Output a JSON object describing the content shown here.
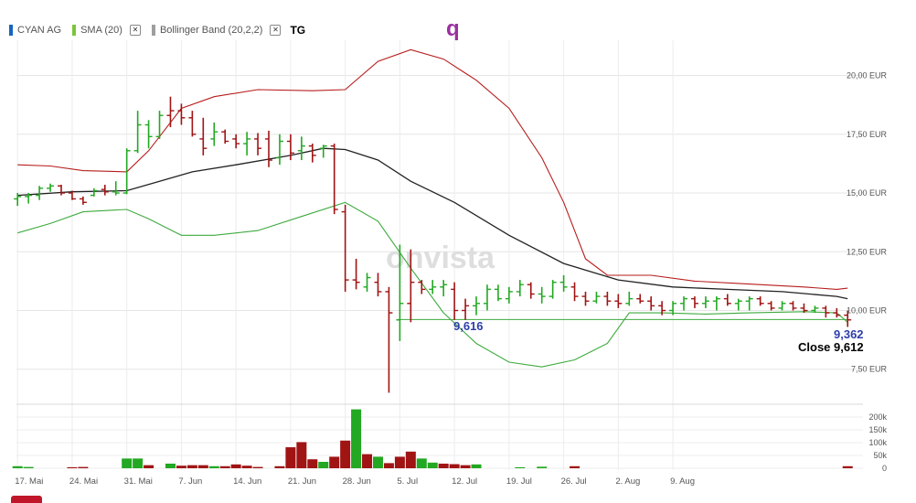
{
  "legend": {
    "instrument": {
      "label": "CYAN AG",
      "color": "#1565c0"
    },
    "sma": {
      "label": "SMA (20)",
      "color": "#7cc53b",
      "close_icon": "close-icon"
    },
    "bollinger": {
      "label": "Bollinger Band (20,2,2)",
      "color": "#9e9e9e",
      "close_icon": "close-icon"
    },
    "period": "TG"
  },
  "brand": "q",
  "watermark": "onvista",
  "annotations": {
    "low_value": "9,616",
    "last_value": "9,362",
    "close_label": "Close 9,612"
  },
  "colors": {
    "up": "#22a822",
    "down": "#a01414",
    "upper_band": "#b71c1c",
    "lower_band": "#3daa3d",
    "sma": "#222222",
    "level_line": "#3daa3d"
  },
  "chart_data": {
    "type": "ohlc",
    "title": "",
    "currency": "EUR",
    "ylim": [
      6.4,
      21.5
    ],
    "yticks": [
      20.0,
      17.5,
      15.0,
      12.5,
      10.0,
      7.5
    ],
    "ytick_labels": [
      "20,00 EUR",
      "17,50 EUR",
      "15,00 EUR",
      "12,50 EUR",
      "10,00 EUR",
      "7,50 EUR"
    ],
    "x_labels": [
      "17. Mai",
      "24. Mai",
      "31. Mai",
      "7. Jun",
      "14. Jun",
      "21. Jun",
      "28. Jun",
      "5. Jul",
      "12. Jul",
      "19. Jul",
      "26. Jul",
      "2. Aug",
      "9. Aug"
    ],
    "x_label_positions": [
      0,
      5,
      10,
      15,
      20,
      25,
      30,
      35,
      40,
      45,
      50,
      55,
      60
    ],
    "ohlc": [
      {
        "o": 14.75,
        "h": 15.0,
        "l": 14.45,
        "c": 14.85,
        "up": true
      },
      {
        "o": 14.85,
        "h": 15.0,
        "l": 14.55,
        "c": 14.9,
        "up": true
      },
      {
        "o": 14.9,
        "h": 15.3,
        "l": 14.7,
        "c": 15.2,
        "up": true
      },
      {
        "o": 15.2,
        "h": 15.4,
        "l": 15.05,
        "c": 15.3,
        "up": true
      },
      {
        "o": 15.3,
        "h": 15.35,
        "l": 14.9,
        "c": 15.0,
        "up": false
      },
      {
        "o": 15.0,
        "h": 15.1,
        "l": 14.7,
        "c": 14.75,
        "up": false
      },
      {
        "o": 14.75,
        "h": 14.85,
        "l": 14.5,
        "c": 14.6,
        "up": false
      },
      {
        "o": 14.9,
        "h": 15.2,
        "l": 14.85,
        "c": 15.1,
        "up": true
      },
      {
        "o": 15.15,
        "h": 15.35,
        "l": 14.9,
        "c": 15.05,
        "up": false
      },
      {
        "o": 15.05,
        "h": 15.5,
        "l": 14.9,
        "c": 15.0,
        "up": true
      },
      {
        "o": 15.0,
        "h": 16.9,
        "l": 14.95,
        "c": 16.8,
        "up": true
      },
      {
        "o": 16.8,
        "h": 18.5,
        "l": 16.7,
        "c": 17.9,
        "up": true
      },
      {
        "o": 17.9,
        "h": 18.1,
        "l": 16.9,
        "c": 17.4,
        "up": true
      },
      {
        "o": 17.4,
        "h": 18.5,
        "l": 17.3,
        "c": 18.3,
        "up": true
      },
      {
        "o": 18.3,
        "h": 19.1,
        "l": 17.8,
        "c": 18.5,
        "up": false
      },
      {
        "o": 18.5,
        "h": 18.8,
        "l": 17.9,
        "c": 18.2,
        "up": false
      },
      {
        "o": 18.2,
        "h": 18.5,
        "l": 17.4,
        "c": 17.5,
        "up": false
      },
      {
        "o": 17.3,
        "h": 18.2,
        "l": 16.6,
        "c": 16.9,
        "up": false
      },
      {
        "o": 17.3,
        "h": 18.0,
        "l": 17.0,
        "c": 17.6,
        "up": true
      },
      {
        "o": 17.6,
        "h": 17.7,
        "l": 17.1,
        "c": 17.2,
        "up": false
      },
      {
        "o": 17.3,
        "h": 17.5,
        "l": 16.9,
        "c": 17.1,
        "up": false
      },
      {
        "o": 17.1,
        "h": 17.6,
        "l": 16.6,
        "c": 17.3,
        "up": true
      },
      {
        "o": 17.3,
        "h": 17.55,
        "l": 16.6,
        "c": 16.9,
        "up": false
      },
      {
        "o": 17.3,
        "h": 17.65,
        "l": 16.1,
        "c": 16.4,
        "up": false
      },
      {
        "o": 16.5,
        "h": 17.5,
        "l": 16.2,
        "c": 17.2,
        "up": true
      },
      {
        "o": 17.2,
        "h": 17.5,
        "l": 16.4,
        "c": 16.7,
        "up": false
      },
      {
        "o": 16.8,
        "h": 17.4,
        "l": 16.4,
        "c": 17.0,
        "up": true
      },
      {
        "o": 17.0,
        "h": 17.1,
        "l": 16.3,
        "c": 16.6,
        "up": false
      },
      {
        "o": 16.9,
        "h": 17.05,
        "l": 16.5,
        "c": 17.0,
        "up": true
      },
      {
        "o": 17.0,
        "h": 17.1,
        "l": 14.1,
        "c": 14.3,
        "up": false
      },
      {
        "o": 14.2,
        "h": 14.5,
        "l": 10.8,
        "c": 11.3,
        "up": false
      },
      {
        "o": 11.3,
        "h": 12.2,
        "l": 10.9,
        "c": 11.2,
        "up": false
      },
      {
        "o": 11.0,
        "h": 11.6,
        "l": 10.8,
        "c": 11.4,
        "up": true
      },
      {
        "o": 11.2,
        "h": 11.6,
        "l": 10.6,
        "c": 10.8,
        "up": false
      },
      {
        "o": 10.8,
        "h": 11.0,
        "l": 6.5,
        "c": 9.9,
        "up": false
      },
      {
        "o": 9.6,
        "h": 12.8,
        "l": 8.7,
        "c": 10.3,
        "up": true
      },
      {
        "o": 10.3,
        "h": 12.6,
        "l": 9.5,
        "c": 11.2,
        "up": false
      },
      {
        "o": 11.2,
        "h": 11.3,
        "l": 10.7,
        "c": 10.9,
        "up": false
      },
      {
        "o": 10.9,
        "h": 11.3,
        "l": 10.7,
        "c": 11.0,
        "up": true
      },
      {
        "o": 11.0,
        "h": 11.3,
        "l": 10.6,
        "c": 11.1,
        "up": true
      },
      {
        "o": 10.9,
        "h": 11.2,
        "l": 9.6,
        "c": 10.0,
        "up": false
      }
    ],
    "ohlc_x": [
      0,
      1,
      2,
      3,
      4,
      5,
      6,
      7,
      8,
      9,
      10,
      11,
      12,
      13,
      14,
      15,
      16,
      17,
      18,
      19,
      20,
      21,
      22,
      23,
      24,
      25,
      26,
      27,
      28,
      29,
      30,
      31,
      32,
      33,
      34,
      35,
      36,
      37,
      38,
      39,
      40
    ],
    "ohlc2": [
      {
        "o": 10.0,
        "h": 10.5,
        "l": 9.6,
        "c": 10.2,
        "up": false
      },
      {
        "o": 10.2,
        "h": 10.6,
        "l": 9.8,
        "c": 10.3,
        "up": true
      },
      {
        "o": 10.3,
        "h": 11.1,
        "l": 10.0,
        "c": 10.9,
        "up": true
      },
      {
        "o": 10.9,
        "h": 11.1,
        "l": 10.4,
        "c": 10.5,
        "up": true
      },
      {
        "o": 10.5,
        "h": 11.0,
        "l": 10.3,
        "c": 10.8,
        "up": true
      },
      {
        "o": 10.8,
        "h": 11.3,
        "l": 10.6,
        "c": 11.1,
        "up": true
      },
      {
        "o": 11.1,
        "h": 11.2,
        "l": 10.5,
        "c": 10.7,
        "up": false
      },
      {
        "o": 10.7,
        "h": 11.0,
        "l": 10.3,
        "c": 10.6,
        "up": true
      },
      {
        "o": 10.6,
        "h": 11.3,
        "l": 10.5,
        "c": 11.2,
        "up": true
      },
      {
        "o": 11.2,
        "h": 11.5,
        "l": 10.8,
        "c": 11.0,
        "up": true
      },
      {
        "o": 11.0,
        "h": 11.2,
        "l": 10.4,
        "c": 10.6,
        "up": false
      },
      {
        "o": 10.6,
        "h": 10.8,
        "l": 10.2,
        "c": 10.4,
        "up": false
      },
      {
        "o": 10.4,
        "h": 10.8,
        "l": 10.3,
        "c": 10.6,
        "up": true
      },
      {
        "o": 10.6,
        "h": 10.8,
        "l": 10.2,
        "c": 10.4,
        "up": false
      },
      {
        "o": 10.4,
        "h": 10.7,
        "l": 10.1,
        "c": 10.3,
        "up": false
      },
      {
        "o": 10.3,
        "h": 10.8,
        "l": 10.2,
        "c": 10.5,
        "up": true
      },
      {
        "o": 10.5,
        "h": 10.7,
        "l": 10.3,
        "c": 10.4,
        "up": false
      },
      {
        "o": 10.4,
        "h": 10.6,
        "l": 10.0,
        "c": 10.2,
        "up": false
      },
      {
        "o": 10.2,
        "h": 10.4,
        "l": 9.8,
        "c": 10.0,
        "up": false
      },
      {
        "o": 10.0,
        "h": 10.4,
        "l": 9.8,
        "c": 10.3,
        "up": true
      },
      {
        "o": 10.3,
        "h": 10.6,
        "l": 10.0,
        "c": 10.5,
        "up": true
      },
      {
        "o": 10.5,
        "h": 10.6,
        "l": 10.1,
        "c": 10.3,
        "up": false
      },
      {
        "o": 10.3,
        "h": 10.6,
        "l": 10.1,
        "c": 10.4,
        "up": true
      },
      {
        "o": 10.4,
        "h": 10.6,
        "l": 10.0,
        "c": 10.5,
        "up": true
      },
      {
        "o": 10.5,
        "h": 10.7,
        "l": 10.2,
        "c": 10.3,
        "up": false
      },
      {
        "o": 10.3,
        "h": 10.5,
        "l": 10.0,
        "c": 10.4,
        "up": true
      },
      {
        "o": 10.4,
        "h": 10.6,
        "l": 10.0,
        "c": 10.5,
        "up": true
      },
      {
        "o": 10.5,
        "h": 10.6,
        "l": 10.2,
        "c": 10.3,
        "up": false
      },
      {
        "o": 10.3,
        "h": 10.4,
        "l": 10.0,
        "c": 10.1,
        "up": false
      },
      {
        "o": 10.1,
        "h": 10.4,
        "l": 10.0,
        "c": 10.3,
        "up": true
      },
      {
        "o": 10.3,
        "h": 10.4,
        "l": 10.0,
        "c": 10.1,
        "up": false
      },
      {
        "o": 10.1,
        "h": 10.3,
        "l": 9.9,
        "c": 10.0,
        "up": false
      },
      {
        "o": 10.0,
        "h": 10.2,
        "l": 9.9,
        "c": 10.1,
        "up": true
      },
      {
        "o": 10.1,
        "h": 10.2,
        "l": 9.7,
        "c": 9.9,
        "up": false
      },
      {
        "o": 9.9,
        "h": 10.1,
        "l": 9.7,
        "c": 9.8,
        "up": false
      },
      {
        "o": 9.8,
        "h": 10.0,
        "l": 9.3,
        "c": 9.6,
        "up": false
      }
    ],
    "ohlc2_x": [
      41,
      42,
      43,
      44,
      45,
      46,
      47,
      48,
      49,
      50,
      51,
      52,
      53,
      54,
      55,
      56,
      57,
      58,
      59,
      60,
      61,
      62,
      63,
      64,
      65,
      66,
      67,
      68,
      69,
      70,
      71,
      72,
      73,
      74,
      75,
      76
    ],
    "sma20": [
      [
        0,
        14.9
      ],
      [
        5,
        15.05
      ],
      [
        10,
        15.1
      ],
      [
        13,
        15.5
      ],
      [
        16,
        15.9
      ],
      [
        20,
        16.2
      ],
      [
        25,
        16.6
      ],
      [
        28,
        16.9
      ],
      [
        30,
        16.85
      ],
      [
        33,
        16.4
      ],
      [
        36,
        15.5
      ],
      [
        40,
        14.6
      ],
      [
        45,
        13.2
      ],
      [
        50,
        12.0
      ],
      [
        55,
        11.3
      ],
      [
        60,
        11.0
      ],
      [
        65,
        10.9
      ],
      [
        70,
        10.8
      ],
      [
        75,
        10.6
      ],
      [
        76,
        10.5
      ]
    ],
    "upper_band": [
      [
        0,
        16.2
      ],
      [
        3,
        16.15
      ],
      [
        6,
        15.95
      ],
      [
        10,
        15.9
      ],
      [
        12,
        16.8
      ],
      [
        15,
        18.6
      ],
      [
        18,
        19.1
      ],
      [
        22,
        19.4
      ],
      [
        27,
        19.35
      ],
      [
        30,
        19.4
      ],
      [
        33,
        20.6
      ],
      [
        36,
        21.1
      ],
      [
        39,
        20.7
      ],
      [
        42,
        19.8
      ],
      [
        45,
        18.6
      ],
      [
        48,
        16.5
      ],
      [
        50,
        14.6
      ],
      [
        52,
        12.2
      ],
      [
        54,
        11.5
      ],
      [
        58,
        11.5
      ],
      [
        62,
        11.25
      ],
      [
        66,
        11.15
      ],
      [
        72,
        11.0
      ],
      [
        75,
        10.9
      ],
      [
        76,
        10.95
      ]
    ],
    "lower_band": [
      [
        0,
        13.3
      ],
      [
        3,
        13.7
      ],
      [
        6,
        14.2
      ],
      [
        10,
        14.3
      ],
      [
        12,
        13.9
      ],
      [
        15,
        13.2
      ],
      [
        18,
        13.2
      ],
      [
        22,
        13.4
      ],
      [
        26,
        14.0
      ],
      [
        30,
        14.6
      ],
      [
        33,
        13.8
      ],
      [
        36,
        11.8
      ],
      [
        39,
        9.9
      ],
      [
        42,
        8.6
      ],
      [
        45,
        7.8
      ],
      [
        48,
        7.6
      ],
      [
        51,
        7.9
      ],
      [
        54,
        8.6
      ],
      [
        56,
        9.9
      ],
      [
        59,
        9.9
      ],
      [
        63,
        9.85
      ],
      [
        67,
        9.9
      ],
      [
        72,
        9.95
      ],
      [
        75,
        9.9
      ],
      [
        76,
        9.5
      ]
    ],
    "level_line": {
      "value": 9.616,
      "x_from": 34,
      "x_to": 76
    },
    "volume": {
      "yticks": [
        200000,
        150000,
        100000,
        50000,
        0
      ],
      "ytick_labels": [
        "200k",
        "150k",
        "100k",
        "50k",
        "0"
      ],
      "ylim": [
        0,
        250000
      ],
      "bars": [
        {
          "x": 0,
          "v": 8000,
          "up": true
        },
        {
          "x": 1,
          "v": 5000,
          "up": true
        },
        {
          "x": 5,
          "v": 4000,
          "up": false
        },
        {
          "x": 6,
          "v": 5000,
          "up": false
        },
        {
          "x": 10,
          "v": 38000,
          "up": true
        },
        {
          "x": 11,
          "v": 38000,
          "up": true
        },
        {
          "x": 12,
          "v": 12000,
          "up": false
        },
        {
          "x": 14,
          "v": 18000,
          "up": true
        },
        {
          "x": 15,
          "v": 10000,
          "up": false
        },
        {
          "x": 16,
          "v": 12000,
          "up": false
        },
        {
          "x": 17,
          "v": 12000,
          "up": false
        },
        {
          "x": 18,
          "v": 8000,
          "up": true
        },
        {
          "x": 19,
          "v": 8000,
          "up": false
        },
        {
          "x": 20,
          "v": 15000,
          "up": false
        },
        {
          "x": 21,
          "v": 10000,
          "up": false
        },
        {
          "x": 22,
          "v": 5000,
          "up": false
        },
        {
          "x": 24,
          "v": 8000,
          "up": false
        },
        {
          "x": 25,
          "v": 82000,
          "up": false
        },
        {
          "x": 26,
          "v": 102000,
          "up": false
        },
        {
          "x": 27,
          "v": 35000,
          "up": false
        },
        {
          "x": 28,
          "v": 25000,
          "up": true
        },
        {
          "x": 29,
          "v": 45000,
          "up": false
        },
        {
          "x": 30,
          "v": 108000,
          "up": false
        },
        {
          "x": 31,
          "v": 230000,
          "up": true
        },
        {
          "x": 32,
          "v": 55000,
          "up": false
        },
        {
          "x": 33,
          "v": 45000,
          "up": true
        },
        {
          "x": 34,
          "v": 20000,
          "up": false
        },
        {
          "x": 35,
          "v": 45000,
          "up": false
        },
        {
          "x": 36,
          "v": 65000,
          "up": false
        },
        {
          "x": 37,
          "v": 38000,
          "up": true
        },
        {
          "x": 38,
          "v": 22000,
          "up": true
        },
        {
          "x": 39,
          "v": 18000,
          "up": false
        },
        {
          "x": 40,
          "v": 16000,
          "up": false
        },
        {
          "x": 41,
          "v": 12000,
          "up": false
        },
        {
          "x": 42,
          "v": 15000,
          "up": true
        },
        {
          "x": 46,
          "v": 4000,
          "up": true
        },
        {
          "x": 48,
          "v": 6000,
          "up": true
        },
        {
          "x": 51,
          "v": 8000,
          "up": false
        },
        {
          "x": 76,
          "v": 8000,
          "up": false
        }
      ]
    }
  }
}
